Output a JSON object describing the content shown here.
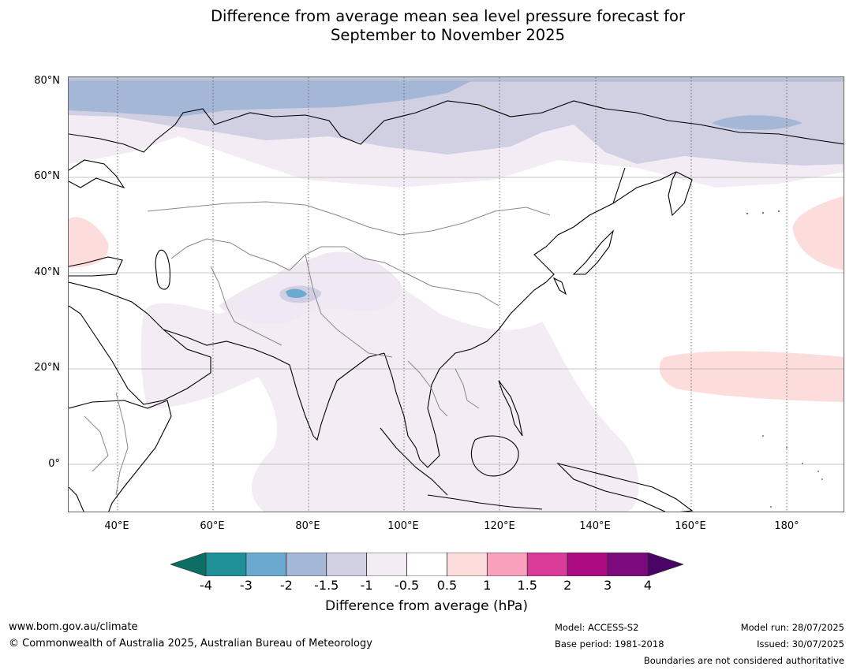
{
  "title_line1": "Difference from average mean sea level pressure forecast for",
  "title_line2": "September to November 2025",
  "lat_labels": [
    "80°N",
    "60°N",
    "40°N",
    "20°N",
    "0°"
  ],
  "lon_labels": [
    "40°E",
    "60°E",
    "80°E",
    "100°E",
    "120°E",
    "140°E",
    "160°E",
    "180°"
  ],
  "colorbar": {
    "ticks": [
      "-4",
      "-3",
      "-2",
      "-1.5",
      "-1",
      "-0.5",
      "0.5",
      "1",
      "1.5",
      "2",
      "3",
      "4"
    ],
    "colors": [
      "#0d6e64",
      "#1f9098",
      "#6aaad0",
      "#a4b7d6",
      "#d0d0e2",
      "#f4ecf4",
      "#ffffff",
      "#fddcdc",
      "#f9a0bc",
      "#da3a98",
      "#ac0a80",
      "#7c0a7e",
      "#4a0466"
    ],
    "label": "Difference from average (hPa)"
  },
  "footer": {
    "website": "www.bom.gov.au/climate",
    "copyright": "© Commonwealth of Australia 2025, Australian Bureau of Meteorology",
    "model": "Model: ACCESS-S2",
    "base_period": "Base period: 1981-2018",
    "model_run": "Model run: 28/07/2025",
    "issued": "Issued: 30/07/2025",
    "disclaimer": "Boundaries are not considered authoritative"
  }
}
